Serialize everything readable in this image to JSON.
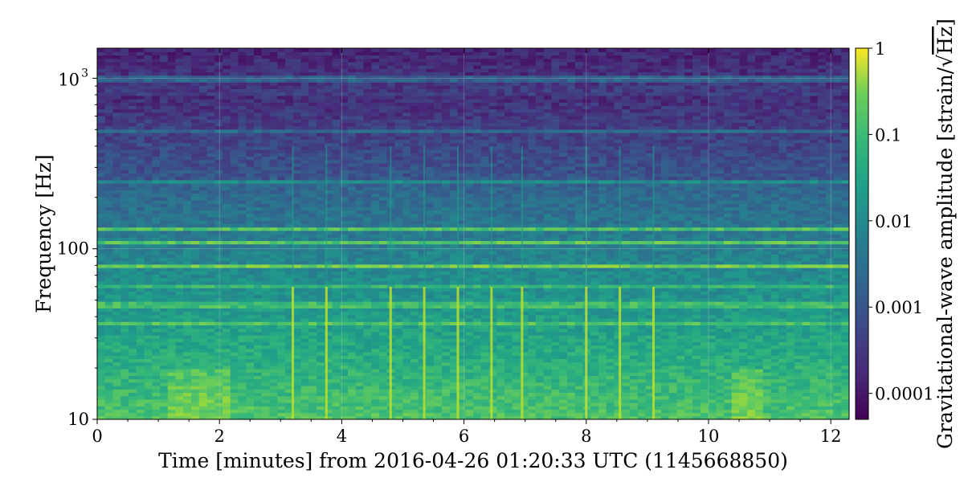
{
  "chart_data": {
    "type": "heatmap",
    "title": "",
    "xlabel": "Time [minutes] from 2016-04-26 01:20:33 UTC (1145668850)",
    "ylabel": "Frequency [Hz]",
    "xlim": [
      0,
      12.3
    ],
    "ylim": [
      10,
      1500
    ],
    "y_scale": "log",
    "x_ticks": [
      "0",
      "2",
      "4",
      "6",
      "8",
      "10",
      "12"
    ],
    "x_tick_values": [
      0,
      2,
      4,
      6,
      8,
      10,
      12
    ],
    "y_tick_labels": {
      "ten": "10",
      "hundred": "100",
      "thousand_base": "10",
      "thousand_exp": "3"
    },
    "y_tick_values": [
      10,
      100,
      1000
    ],
    "colorbar": {
      "label_prefix": "Gravitational-wave amplitude [strain/",
      "label_root": "Hz",
      "label_suffix": "]",
      "scale": "log",
      "range": [
        5e-05,
        1
      ],
      "ticks": [
        "1",
        "0.1",
        "0.01",
        "0.001",
        "0.0001"
      ],
      "tick_values": [
        1,
        0.1,
        0.01,
        0.001,
        0.0001
      ],
      "colormap": "viridis"
    },
    "grid": true,
    "features": {
      "horizontal_lines_hz": [
        80,
        110,
        130,
        60,
        47,
        36,
        1000,
        500,
        250
      ],
      "vertical_glitches_min": [
        3.2,
        3.75,
        4.8,
        5.35,
        5.9,
        6.45,
        6.95,
        8.0,
        8.55,
        9.1
      ]
    }
  }
}
